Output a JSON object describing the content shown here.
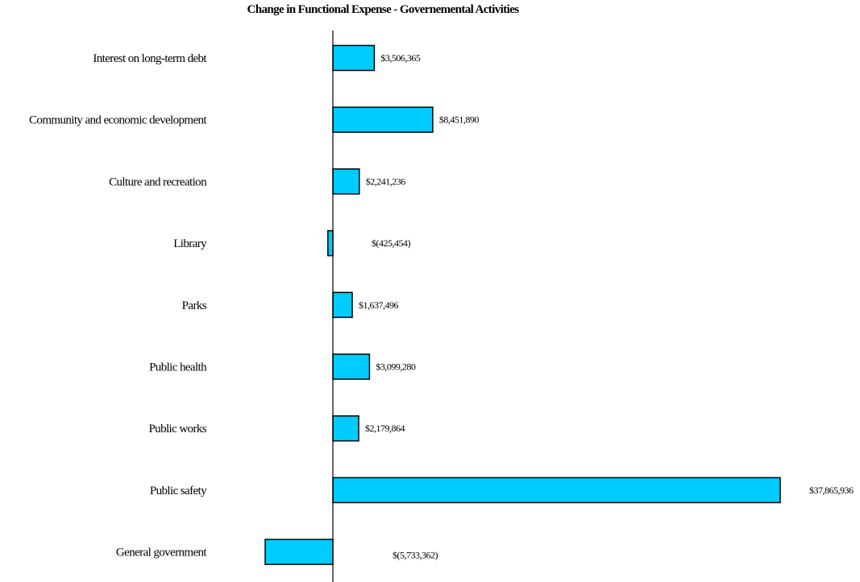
{
  "chart_data": {
    "type": "bar",
    "orientation": "horizontal",
    "title": "Change in Functional Expense - Governemental Activities",
    "xlabel": "",
    "ylabel": "",
    "categories": [
      "Interest on long-term debt",
      "Community and economic development",
      "Culture and recreation",
      "Library",
      "Parks",
      "Public health",
      "Public works",
      "Public safety",
      "General government"
    ],
    "values": [
      3506365,
      8451890,
      2241236,
      -425454,
      1637496,
      3099280,
      2179864,
      37865936,
      -5733362
    ],
    "data_labels": [
      "$3,506,365",
      "$8,451,890",
      "$2,241,236",
      "$(425,454)",
      "$1,637,496",
      "$3,099,280",
      "$2,179,864",
      "$37,865,936",
      "$(5,733,362)"
    ],
    "xlim": [
      -5733362,
      37865936
    ],
    "grid": false,
    "legend": "none",
    "bar_color": "#00CCFF",
    "bar_edge_color": "#000000"
  }
}
